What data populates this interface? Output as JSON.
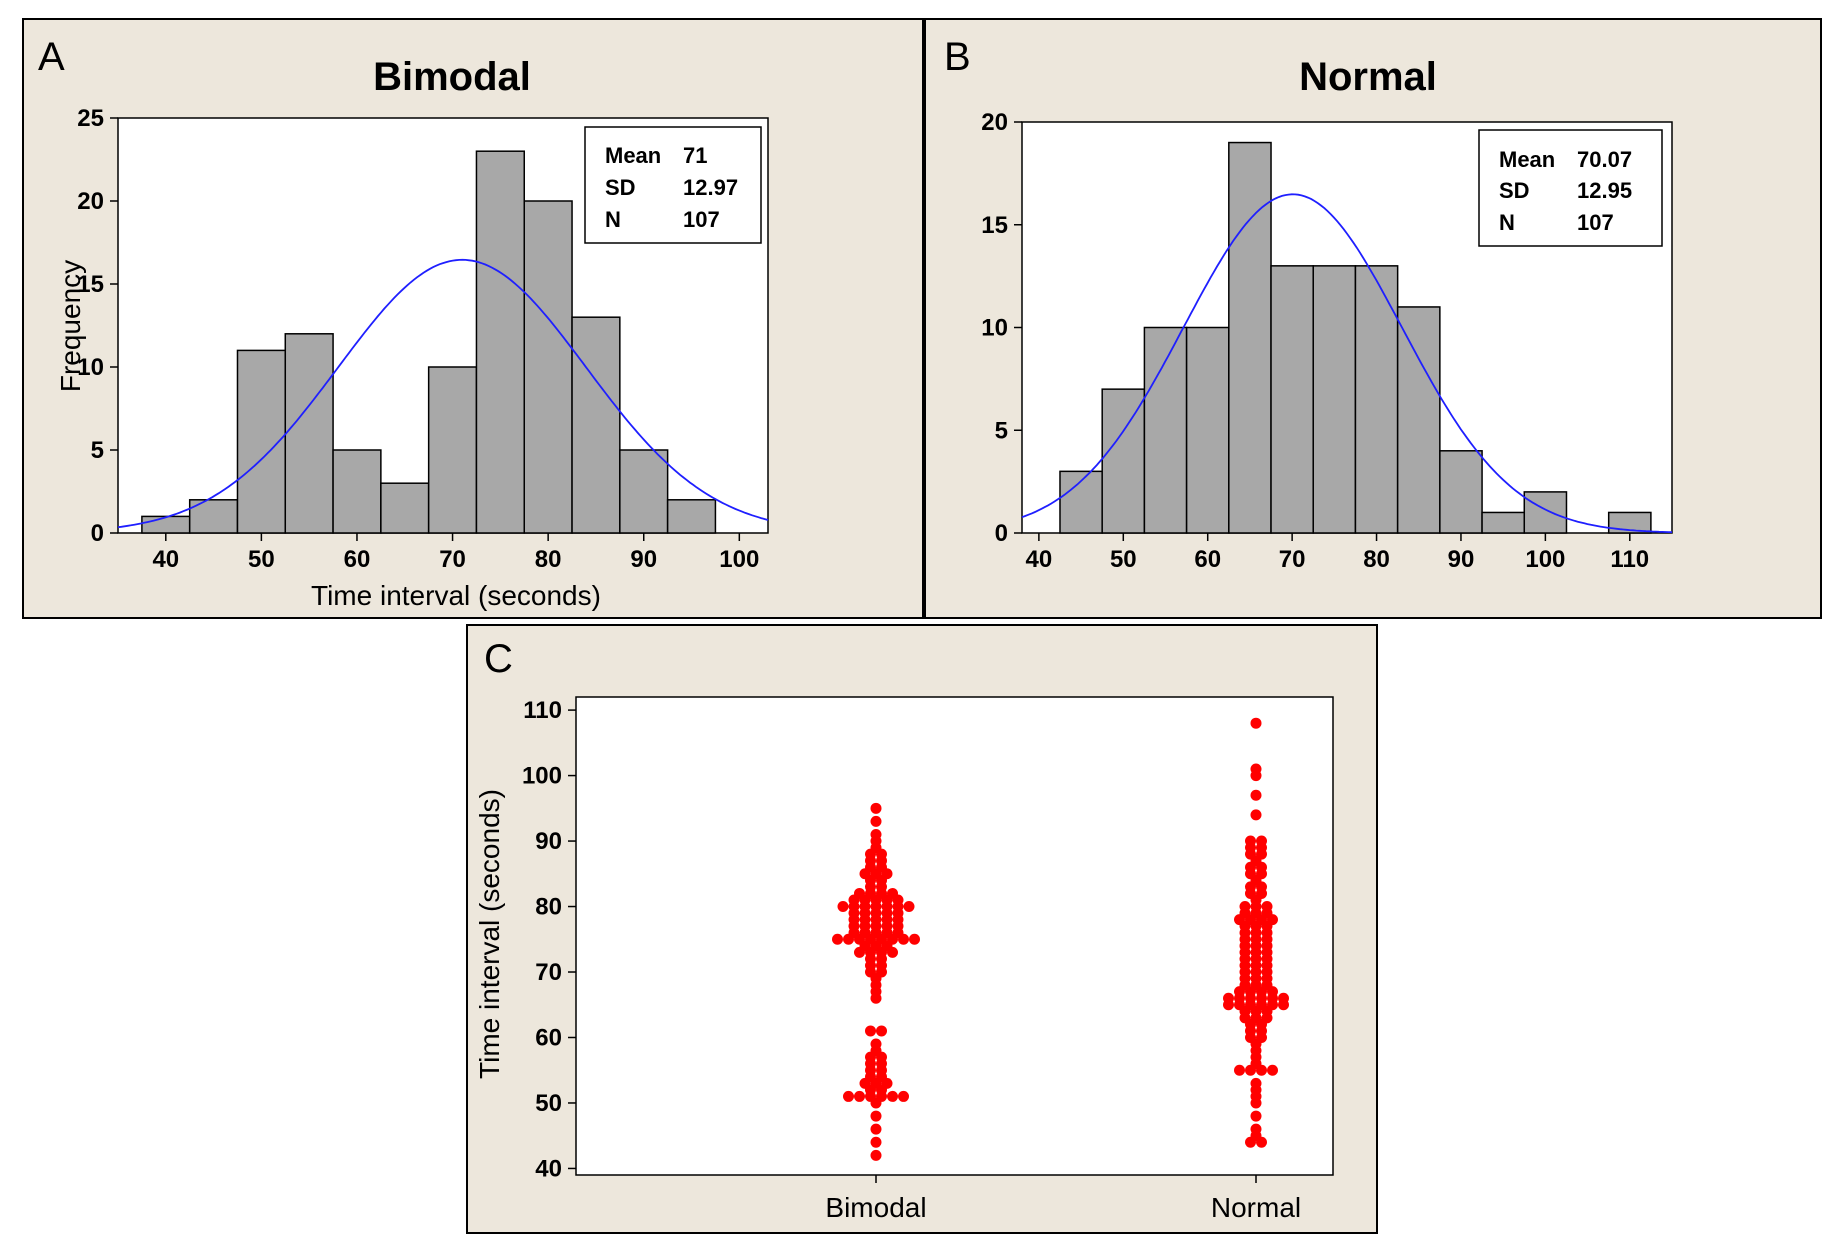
{
  "chart_data": [
    {
      "panel_label": "A",
      "type": "bar",
      "title": "Bimodal",
      "xlabel": "Time interval (seconds)",
      "ylabel": "Frequency",
      "xlim": [
        35,
        103
      ],
      "ylim": [
        0,
        25
      ],
      "xticks": [
        40,
        50,
        60,
        70,
        80,
        90,
        100
      ],
      "yticks": [
        0,
        5,
        10,
        15,
        20,
        25
      ],
      "bins": [
        {
          "x0": 37.5,
          "x1": 42.5,
          "count": 1
        },
        {
          "x0": 42.5,
          "x1": 47.5,
          "count": 2
        },
        {
          "x0": 47.5,
          "x1": 52.5,
          "count": 11
        },
        {
          "x0": 52.5,
          "x1": 57.5,
          "count": 12
        },
        {
          "x0": 57.5,
          "x1": 62.5,
          "count": 5
        },
        {
          "x0": 62.5,
          "x1": 67.5,
          "count": 3
        },
        {
          "x0": 67.5,
          "x1": 72.5,
          "count": 10
        },
        {
          "x0": 72.5,
          "x1": 77.5,
          "count": 23
        },
        {
          "x0": 77.5,
          "x1": 82.5,
          "count": 20
        },
        {
          "x0": 82.5,
          "x1": 87.5,
          "count": 13
        },
        {
          "x0": 87.5,
          "x1": 92.5,
          "count": 5
        },
        {
          "x0": 92.5,
          "x1": 97.5,
          "count": 2
        }
      ],
      "fit": {
        "type": "normal",
        "mean": 71,
        "sd": 12.97,
        "n": 107,
        "binwidth": 5
      },
      "stats": [
        {
          "label": "Mean",
          "value": "71"
        },
        {
          "label": "SD",
          "value": "12.97"
        },
        {
          "label": "N",
          "value": "107"
        }
      ]
    },
    {
      "panel_label": "B",
      "type": "bar",
      "title": "Normal",
      "xlabel": "",
      "ylabel": "",
      "xlim": [
        38,
        115
      ],
      "ylim": [
        0,
        20
      ],
      "xticks": [
        40,
        50,
        60,
        70,
        80,
        90,
        100,
        110
      ],
      "yticks": [
        0,
        5,
        10,
        15,
        20
      ],
      "bins": [
        {
          "x0": 42.5,
          "x1": 47.5,
          "count": 3
        },
        {
          "x0": 47.5,
          "x1": 52.5,
          "count": 7
        },
        {
          "x0": 52.5,
          "x1": 57.5,
          "count": 10
        },
        {
          "x0": 57.5,
          "x1": 62.5,
          "count": 10
        },
        {
          "x0": 62.5,
          "x1": 67.5,
          "count": 19
        },
        {
          "x0": 67.5,
          "x1": 72.5,
          "count": 13
        },
        {
          "x0": 72.5,
          "x1": 77.5,
          "count": 13
        },
        {
          "x0": 77.5,
          "x1": 82.5,
          "count": 13
        },
        {
          "x0": 82.5,
          "x1": 87.5,
          "count": 11
        },
        {
          "x0": 87.5,
          "x1": 92.5,
          "count": 4
        },
        {
          "x0": 92.5,
          "x1": 97.5,
          "count": 1
        },
        {
          "x0": 97.5,
          "x1": 102.5,
          "count": 2
        },
        {
          "x0": 107.5,
          "x1": 112.5,
          "count": 1
        }
      ],
      "fit": {
        "type": "normal",
        "mean": 70.07,
        "sd": 12.95,
        "n": 107,
        "binwidth": 5
      },
      "stats": [
        {
          "label": "Mean",
          "value": "70.07"
        },
        {
          "label": "SD",
          "value": "12.95"
        },
        {
          "label": "N",
          "value": "107"
        }
      ]
    },
    {
      "panel_label": "C",
      "type": "scatter",
      "title": "",
      "xlabel": "",
      "ylabel": "Time interval (seconds)",
      "ylim": [
        39,
        112
      ],
      "yticks": [
        40,
        50,
        60,
        70,
        80,
        90,
        100,
        110
      ],
      "categories": [
        "Bimodal",
        "Normal"
      ],
      "series": [
        {
          "category": "Bimodal",
          "values": [
            42,
            44,
            46,
            48,
            50,
            51,
            51,
            51,
            51,
            51,
            51,
            52,
            52,
            53,
            53,
            53,
            54,
            54,
            55,
            55,
            56,
            56,
            57,
            57,
            58,
            59,
            61,
            61,
            66,
            67,
            68,
            69,
            70,
            70,
            71,
            71,
            72,
            72,
            73,
            73,
            73,
            73,
            74,
            74,
            74,
            75,
            75,
            75,
            75,
            75,
            75,
            75,
            75,
            76,
            76,
            76,
            76,
            76,
            77,
            77,
            77,
            77,
            77,
            78,
            78,
            78,
            78,
            79,
            79,
            79,
            79,
            79,
            80,
            80,
            80,
            80,
            80,
            80,
            80,
            81,
            81,
            81,
            81,
            82,
            82,
            82,
            82,
            83,
            83,
            84,
            84,
            85,
            85,
            85,
            86,
            86,
            87,
            87,
            88,
            88,
            89,
            90,
            91,
            93,
            95,
            81,
            78
          ]
        },
        {
          "category": "Normal",
          "values": [
            44,
            44,
            45,
            46,
            48,
            50,
            51,
            52,
            53,
            55,
            55,
            55,
            55,
            56,
            57,
            58,
            59,
            60,
            60,
            61,
            61,
            62,
            62,
            63,
            63,
            63,
            64,
            64,
            64,
            65,
            65,
            65,
            65,
            65,
            66,
            66,
            66,
            66,
            66,
            67,
            67,
            67,
            68,
            68,
            68,
            69,
            69,
            69,
            70,
            70,
            70,
            71,
            71,
            71,
            72,
            72,
            73,
            73,
            73,
            74,
            74,
            75,
            75,
            75,
            76,
            76,
            76,
            77,
            77,
            77,
            78,
            78,
            78,
            78,
            79,
            79,
            79,
            80,
            80,
            80,
            81,
            82,
            82,
            83,
            83,
            84,
            85,
            85,
            86,
            86,
            87,
            88,
            88,
            89,
            89,
            90,
            90,
            94,
            97,
            100,
            101,
            108,
            66,
            65,
            67,
            72,
            74
          ]
        }
      ],
      "marker_color": "#ff0000"
    }
  ],
  "colors": {
    "panel_bg": "#ede7dc",
    "bar_fill": "#a8a8a8",
    "fit_line": "#1f1fff",
    "dots": "#ff0000"
  }
}
